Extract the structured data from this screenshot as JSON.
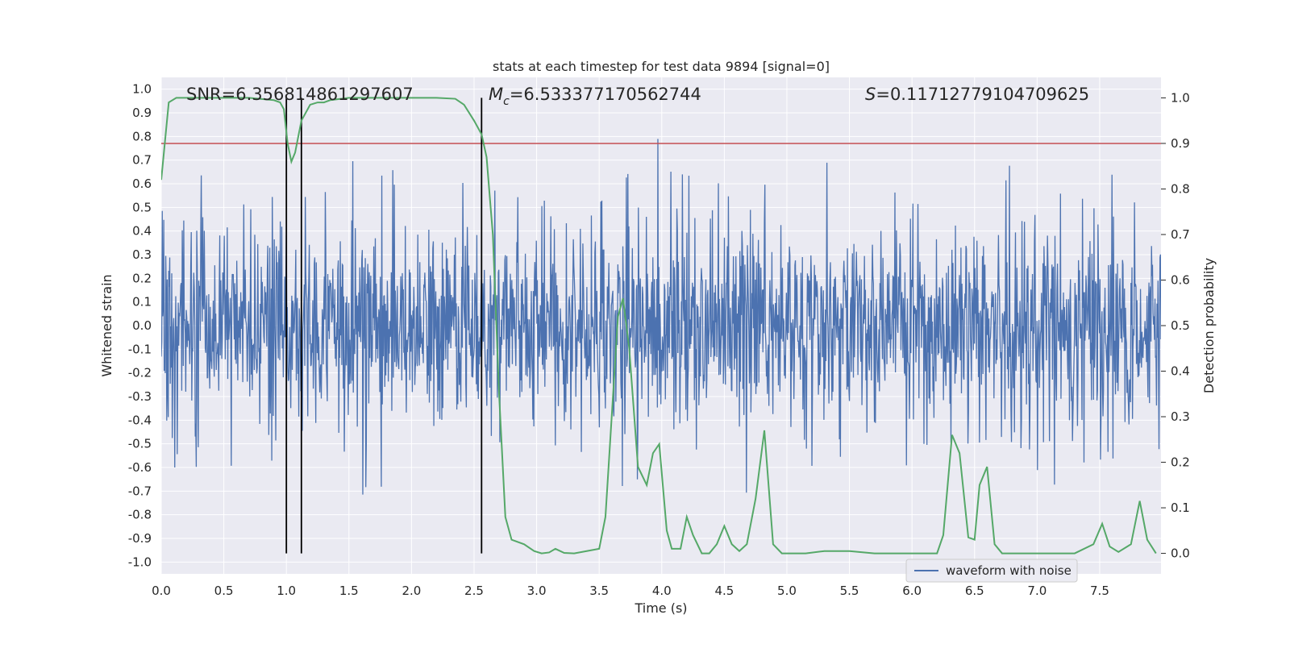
{
  "chart_data": {
    "type": "line",
    "title": "stats at each timestep for test data 9894 [signal=0]",
    "xlabel": "Time (s)",
    "ylabel_left": "Whitened strain",
    "ylabel_right": "Detection probability",
    "xlim": [
      0.0,
      7.99
    ],
    "ylim_left": [
      -1.05,
      1.05
    ],
    "ylim_right": [
      -0.045,
      1.045
    ],
    "x_ticks": [
      0.0,
      0.5,
      1.0,
      1.5,
      2.0,
      2.5,
      3.0,
      3.5,
      4.0,
      4.5,
      5.0,
      5.5,
      6.0,
      6.5,
      7.0,
      7.5
    ],
    "x_tick_labels": [
      "0.0",
      "0.5",
      "1.0",
      "1.5",
      "2.0",
      "2.5",
      "3.0",
      "3.5",
      "4.0",
      "4.5",
      "5.0",
      "5.5",
      "6.0",
      "6.5",
      "7.0",
      "7.5"
    ],
    "y_left_ticks": [
      1.0,
      0.9,
      0.8,
      0.7,
      0.6,
      0.5,
      0.4,
      0.3,
      0.2,
      0.1,
      0.0,
      -0.1,
      -0.2,
      -0.3,
      -0.4,
      -0.5,
      -0.6,
      -0.7,
      -0.8,
      -0.9,
      -1.0
    ],
    "y_left_tick_labels": [
      "1.0",
      "0.9",
      "0.8",
      "0.7",
      "0.6",
      "0.5",
      "0.4",
      "0.3",
      "0.2",
      "0.1",
      "0.0",
      "-0.1",
      "-0.2",
      "-0.3",
      "-0.4",
      "-0.5",
      "-0.6",
      "-0.7",
      "-0.8",
      "-0.9",
      "-1.0"
    ],
    "y_right_ticks": [
      1.0,
      0.9,
      0.8,
      0.7,
      0.6,
      0.5,
      0.4,
      0.3,
      0.2,
      0.1,
      0.0
    ],
    "y_right_tick_labels": [
      "1.0",
      "0.9",
      "0.8",
      "0.7",
      "0.6",
      "0.5",
      "0.4",
      "0.3",
      "0.2",
      "0.1",
      "0.0"
    ],
    "grid": true,
    "annotations": {
      "snr": "SNR=6.356814861297607",
      "mc_symbol": "M",
      "mc_sub": "c",
      "mc_value": "=6.533377170562744",
      "s_symbol": "S",
      "s_value": "=0.11712779104709625"
    },
    "legend": {
      "placement": "lower-right",
      "entries": [
        "waveform with noise"
      ]
    },
    "threshold": {
      "axis": "right",
      "value": 0.9,
      "color": "#c44e52"
    },
    "vertical_markers": [
      1.0,
      1.12,
      2.56
    ],
    "waveform": {
      "name": "waveform with noise",
      "color": "#4c72b0",
      "t_start": 0.0,
      "t_end": 7.99,
      "samples": 2000,
      "seed": 9894,
      "sigma": 0.19,
      "spike_rate": 0.05,
      "spike_min": 0.35,
      "spike_max": 0.65,
      "clip": 1.0
    },
    "series": [
      {
        "name": "detection probability",
        "axis": "right",
        "color": "#55a868",
        "x": [
          0.0,
          0.06,
          0.12,
          0.3,
          0.5,
          0.7,
          0.9,
          0.95,
          0.98,
          1.01,
          1.04,
          1.07,
          1.12,
          1.19,
          1.25,
          1.3,
          1.35,
          1.5,
          1.7,
          2.0,
          2.2,
          2.35,
          2.42,
          2.5,
          2.56,
          2.6,
          2.65,
          2.7,
          2.75,
          2.8,
          2.9,
          2.98,
          3.04,
          3.1,
          3.15,
          3.22,
          3.3,
          3.4,
          3.5,
          3.55,
          3.6,
          3.65,
          3.69,
          3.74,
          3.81,
          3.88,
          3.93,
          3.98,
          4.04,
          4.08,
          4.15,
          4.2,
          4.25,
          4.32,
          4.38,
          4.44,
          4.5,
          4.56,
          4.62,
          4.68,
          4.75,
          4.82,
          4.89,
          4.96,
          5.02,
          5.15,
          5.3,
          5.5,
          5.7,
          5.9,
          6.05,
          6.1,
          6.2,
          6.25,
          6.32,
          6.38,
          6.45,
          6.5,
          6.54,
          6.6,
          6.66,
          6.72,
          6.8,
          7.0,
          7.3,
          7.45,
          7.52,
          7.58,
          7.65,
          7.75,
          7.82,
          7.88,
          7.95
        ],
        "values": [
          0.82,
          0.99,
          1.0,
          1.0,
          1.0,
          1.0,
          0.995,
          0.99,
          0.975,
          0.9,
          0.86,
          0.88,
          0.95,
          0.985,
          0.99,
          0.99,
          0.995,
          1.0,
          1.0,
          1.0,
          1.0,
          0.998,
          0.985,
          0.95,
          0.92,
          0.87,
          0.7,
          0.35,
          0.08,
          0.03,
          0.02,
          0.005,
          0.0,
          0.002,
          0.01,
          0.001,
          0.0,
          0.005,
          0.01,
          0.08,
          0.3,
          0.52,
          0.56,
          0.45,
          0.19,
          0.15,
          0.22,
          0.24,
          0.05,
          0.01,
          0.01,
          0.08,
          0.04,
          0.0,
          0.0,
          0.02,
          0.06,
          0.02,
          0.005,
          0.02,
          0.12,
          0.27,
          0.02,
          0.0,
          0.0,
          0.0,
          0.005,
          0.005,
          0.0,
          0.0,
          0.0,
          0.0,
          0.0,
          0.04,
          0.26,
          0.22,
          0.035,
          0.03,
          0.15,
          0.19,
          0.02,
          0.0,
          0.0,
          0.0,
          0.0,
          0.02,
          0.065,
          0.015,
          0.003,
          0.02,
          0.115,
          0.03,
          0.0
        ]
      }
    ]
  }
}
